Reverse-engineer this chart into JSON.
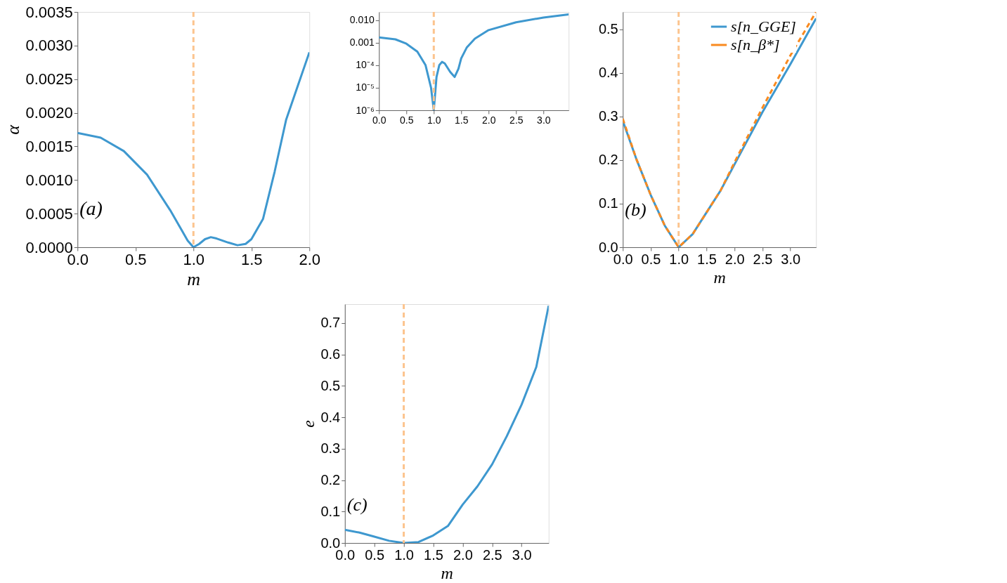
{
  "chart_data": [
    {
      "type": "line",
      "xlabel": "m",
      "ylabel": "α",
      "xlim": [
        0,
        2.0
      ],
      "xticks": [
        {
          "value": 0,
          "label": "0.0"
        },
        0.5,
        {
          "value": 1,
          "label": "1.0"
        },
        1.5,
        {
          "value": 2,
          "label": "2.0"
        }
      ],
      "ylim": [
        0,
        0.0035
      ],
      "yticks": [
        {
          "value": 0,
          "label": "0.0000"
        },
        0.0005,
        {
          "value": 0.001,
          "label": "0.0010"
        },
        0.0015,
        {
          "value": 0.002,
          "label": "0.0020"
        },
        0.0025,
        {
          "value": 0.003,
          "label": "0.0030"
        },
        0.0035
      ],
      "grid": false,
      "legend": false,
      "x": [
        0,
        0.2,
        0.4,
        0.6,
        0.8,
        0.9,
        0.95,
        1.0,
        1.05,
        1.1,
        1.15,
        1.2,
        1.3,
        1.38,
        1.45,
        1.5,
        1.6,
        1.7,
        1.8,
        1.9,
        2.0
      ],
      "series": [
        {
          "color": "#3e98cf",
          "line_style": "solid",
          "values": [
            0.0017,
            0.00163,
            0.00143,
            0.00108,
            0.00055,
            0.00025,
            0.0001,
            0,
            5e-05,
            0.00012,
            0.00015,
            0.00013,
            7e-05,
            3e-05,
            5e-05,
            0.00012,
            0.00042,
            0.00112,
            0.0019,
            0.0024,
            0.0029
          ]
        }
      ],
      "ref_lines": [
        {
          "axis": "x",
          "value": 1.0,
          "color": "#fcc48e",
          "line_style": "dashed"
        }
      ],
      "annotations": [
        "(a)"
      ]
    },
    {
      "type": "line",
      "log": "y",
      "xlim": [
        0,
        3.46
      ],
      "xticks": [
        {
          "value": 0,
          "label": "0.0"
        },
        0.5,
        {
          "value": 1,
          "label": "1.0"
        },
        1.5,
        {
          "value": 2,
          "label": "2.0"
        },
        2.5,
        {
          "value": 3,
          "label": "3.0"
        }
      ],
      "ylim": [
        1e-06,
        0.023
      ],
      "yticks": [
        {
          "value": 1e-06,
          "label": "10⁻⁶"
        },
        {
          "value": 1e-05,
          "label": "10⁻⁵"
        },
        {
          "value": 0.0001,
          "label": "10⁻⁴"
        },
        0.001,
        {
          "value": 0.01,
          "label": "0.010"
        }
      ],
      "grid": false,
      "legend": false,
      "x": [
        0,
        0.3,
        0.5,
        0.7,
        0.85,
        0.95,
        1.0,
        1.05,
        1.1,
        1.15,
        1.2,
        1.3,
        1.38,
        1.45,
        1.5,
        1.6,
        1.75,
        2.0,
        2.5,
        3.0,
        3.46
      ],
      "series": [
        {
          "color": "#3e98cf",
          "line_style": "solid",
          "values": [
            0.0017,
            0.0014,
            0.0009,
            0.0004,
            0.0001,
            1e-05,
            1e-06,
            3e-05,
            0.0001,
            0.00014,
            0.00012,
            5e-05,
            3e-05,
            7e-05,
            0.0002,
            0.0006,
            0.0015,
            0.0036,
            0.008,
            0.013,
            0.018
          ]
        }
      ],
      "ref_lines": [
        {
          "axis": "x",
          "value": 1.0,
          "color": "#fcc48e",
          "line_style": "dashed"
        }
      ]
    },
    {
      "type": "line",
      "xlabel": "m",
      "xlim": [
        0,
        3.46
      ],
      "xticks": [
        {
          "value": 0,
          "label": "0.0"
        },
        0.5,
        {
          "value": 1,
          "label": "1.0"
        },
        1.5,
        {
          "value": 2,
          "label": "2.0"
        },
        2.5,
        {
          "value": 3,
          "label": "3.0"
        }
      ],
      "ylim": [
        0,
        0.54
      ],
      "yticks": [
        {
          "value": 0,
          "label": "0.0"
        },
        0.1,
        0.2,
        0.3,
        0.4,
        0.5
      ],
      "grid": false,
      "legend": "top right",
      "x": [
        0,
        0.25,
        0.5,
        0.75,
        1.0,
        1.25,
        1.5,
        1.75,
        2.0,
        2.5,
        3.0,
        3.46
      ],
      "series": [
        {
          "name": "s[n_GGE]",
          "color": "#3e98cf",
          "line_style": "solid",
          "values": [
            0.29,
            0.2,
            0.12,
            0.05,
            0,
            0.03,
            0.08,
            0.13,
            0.19,
            0.31,
            0.42,
            0.525
          ]
        },
        {
          "name": "s[n_β*]",
          "color": "#f98a1f",
          "line_style": "dashed",
          "values": [
            0.295,
            0.2,
            0.12,
            0.05,
            0,
            0.03,
            0.08,
            0.13,
            0.195,
            0.32,
            0.44,
            0.54
          ]
        }
      ],
      "ref_lines": [
        {
          "axis": "x",
          "value": 1.0,
          "color": "#fcc48e",
          "line_style": "dashed"
        }
      ],
      "annotations": [
        "(b)"
      ]
    },
    {
      "type": "line",
      "xlabel": "m",
      "ylabel": "e",
      "xlim": [
        0,
        3.46
      ],
      "xticks": [
        {
          "value": 0,
          "label": "0.0"
        },
        0.5,
        {
          "value": 1,
          "label": "1.0"
        },
        1.5,
        {
          "value": 2,
          "label": "2.0"
        },
        2.5,
        {
          "value": 3,
          "label": "3.0"
        }
      ],
      "ylim": [
        0,
        0.76
      ],
      "yticks": [
        {
          "value": 0,
          "label": "0.0"
        },
        0.1,
        0.2,
        0.3,
        0.4,
        0.5,
        0.6,
        0.7
      ],
      "grid": false,
      "legend": false,
      "x": [
        0,
        0.25,
        0.5,
        0.75,
        1.0,
        1.25,
        1.5,
        1.75,
        2.0,
        2.25,
        2.5,
        2.75,
        3.0,
        3.25,
        3.46
      ],
      "series": [
        {
          "color": "#3e98cf",
          "line_style": "solid",
          "values": [
            0.042,
            0.033,
            0.02,
            0.007,
            0,
            0.003,
            0.024,
            0.054,
            0.122,
            0.18,
            0.25,
            0.34,
            0.44,
            0.56,
            0.755
          ]
        }
      ],
      "ref_lines": [
        {
          "axis": "x",
          "value": 1.0,
          "color": "#fcc48e",
          "line_style": "dashed"
        }
      ],
      "annotations": [
        "(c)"
      ]
    }
  ]
}
